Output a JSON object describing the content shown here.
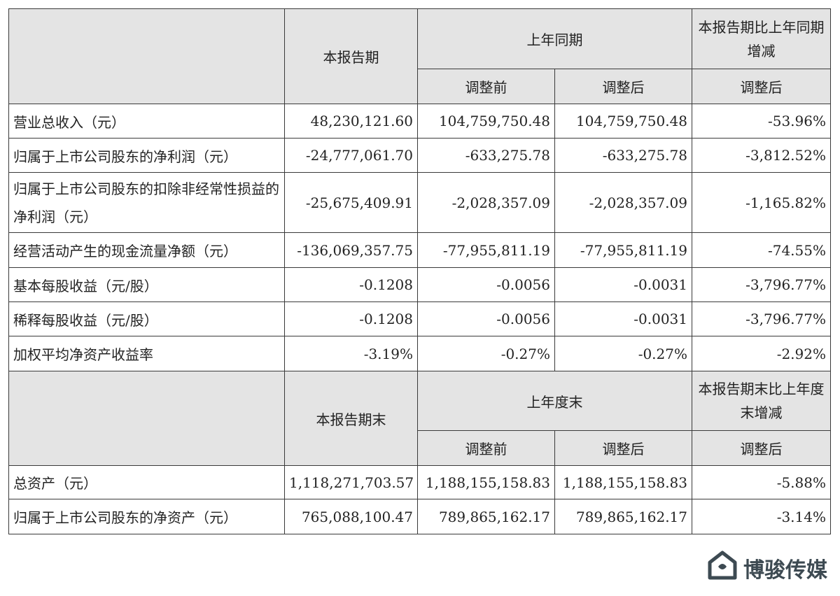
{
  "header1": {
    "current_period": "本报告期",
    "prior_period": "上年同期",
    "change": "本报告期比上年同期增减",
    "before_adj": "调整前",
    "after_adj": "调整后",
    "change_after_adj": "调整后"
  },
  "income_rows": [
    {
      "label": "营业总收入（元）",
      "current": "48,230,121.60",
      "before": "104,759,750.48",
      "after": "104,759,750.48",
      "change": "-53.96%"
    },
    {
      "label": "归属于上市公司股东的净利润（元）",
      "current": "-24,777,061.70",
      "before": "-633,275.78",
      "after": "-633,275.78",
      "change": "-3,812.52%"
    },
    {
      "label": "归属于上市公司股东的扣除非经常性损益的净利润（元）",
      "current": "-25,675,409.91",
      "before": "-2,028,357.09",
      "after": "-2,028,357.09",
      "change": "-1,165.82%"
    },
    {
      "label": "经营活动产生的现金流量净额（元）",
      "current": "-136,069,357.75",
      "before": "-77,955,811.19",
      "after": "-77,955,811.19",
      "change": "-74.55%"
    },
    {
      "label": "基本每股收益（元/股）",
      "current": "-0.1208",
      "before": "-0.0056",
      "after": "-0.0031",
      "change": "-3,796.77%"
    },
    {
      "label": "稀释每股收益（元/股）",
      "current": "-0.1208",
      "before": "-0.0056",
      "after": "-0.0031",
      "change": "-3,796.77%"
    },
    {
      "label": "加权平均净资产收益率",
      "current": "-3.19%",
      "before": "-0.27%",
      "after": "-0.27%",
      "change": "-2.92%"
    }
  ],
  "header2": {
    "current_period_end": "本报告期末",
    "prior_year_end": "上年度末",
    "change": "本报告期末比上年度末增减",
    "before_adj": "调整前",
    "after_adj": "调整后",
    "change_after_adj": "调整后"
  },
  "balance_rows": [
    {
      "label": "总资产（元）",
      "current": "1,118,271,703.57",
      "before": "1,188,155,158.83",
      "after": "1,188,155,158.83",
      "change": "-5.88%"
    },
    {
      "label": "归属于上市公司股东的净资产（元）",
      "current": "765,088,100.47",
      "before": "789,865,162.17",
      "after": "789,865,162.17",
      "change": "-3.14%"
    }
  ],
  "watermark": {
    "text": "博骏传媒",
    "icon": "house-logo-icon",
    "color": "#3d4a52"
  }
}
